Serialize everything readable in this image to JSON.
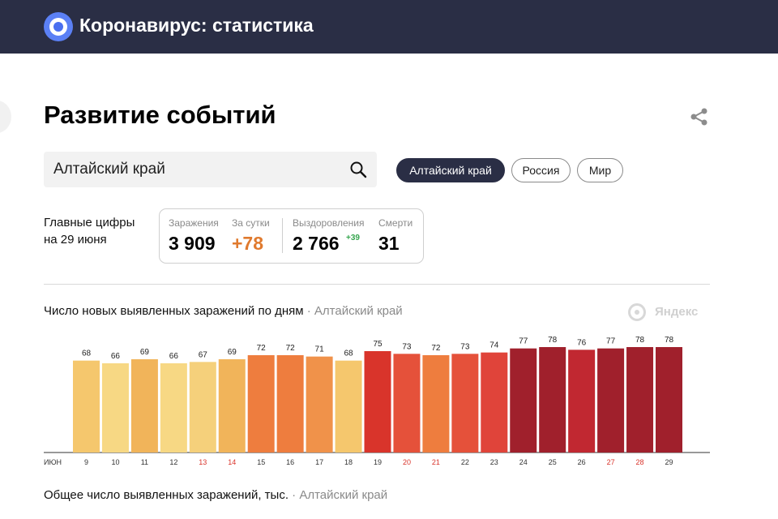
{
  "header": {
    "title": "Коронавирус: статистика"
  },
  "page": {
    "title": "Развитие событий"
  },
  "search": {
    "value": "Алтайский край"
  },
  "region_chips": [
    {
      "label": "Алтайский край",
      "active": true
    },
    {
      "label": "Россия",
      "active": false
    },
    {
      "label": "Мир",
      "active": false
    }
  ],
  "summary": {
    "line1": "Главные цифры",
    "line2": "на 29 июня"
  },
  "stats": {
    "infected_label": "Заражения",
    "infected_value": "3 909",
    "daily_label": "За сутки",
    "daily_value": "+78",
    "recovered_label": "Выздоровления",
    "recovered_value": "2 766",
    "recovered_delta": "+39",
    "deaths_label": "Смерти",
    "deaths_value": "31"
  },
  "chart1": {
    "title": "Число новых выявленных заражений по дням",
    "region": "· Алтайский край"
  },
  "chart2": {
    "title": "Общее число выявленных заражений, тыс.",
    "region": "· Алтайский край"
  },
  "watermark": {
    "text": "Яндекс"
  },
  "colors": {
    "header_bg": "#2a2e45",
    "accent_orange": "#e07a2e",
    "accent_green": "#36a64f",
    "weekend_tick": "#d9342b"
  },
  "chart_data": {
    "type": "bar",
    "title": "Число новых выявленных заражений по дням",
    "axis_start_label": "ИЮН",
    "categories": [
      "9",
      "10",
      "11",
      "12",
      "13",
      "14",
      "15",
      "16",
      "17",
      "18",
      "19",
      "20",
      "21",
      "22",
      "23",
      "24",
      "25",
      "26",
      "27",
      "28",
      "29"
    ],
    "values": [
      68,
      66,
      69,
      66,
      67,
      69,
      72,
      72,
      71,
      68,
      75,
      73,
      72,
      73,
      74,
      77,
      78,
      76,
      77,
      78,
      78
    ],
    "highlight_ticks": [
      "13",
      "14",
      "20",
      "21",
      "27",
      "28"
    ],
    "bar_colors": [
      "#f5c76d",
      "#f7d884",
      "#f1b45a",
      "#f7d884",
      "#f5d07b",
      "#f1b45a",
      "#ee7d3e",
      "#ee7d3e",
      "#f0924a",
      "#f5c76d",
      "#d9342b",
      "#e5513a",
      "#ee7d3e",
      "#e5513a",
      "#e0443a",
      "#a0202c",
      "#a0202c",
      "#c12831",
      "#a0202c",
      "#a0202c",
      "#a0202c"
    ],
    "xlabel": "",
    "ylabel": "",
    "ylim": [
      0,
      78
    ],
    "grid": false,
    "legend": "none"
  }
}
